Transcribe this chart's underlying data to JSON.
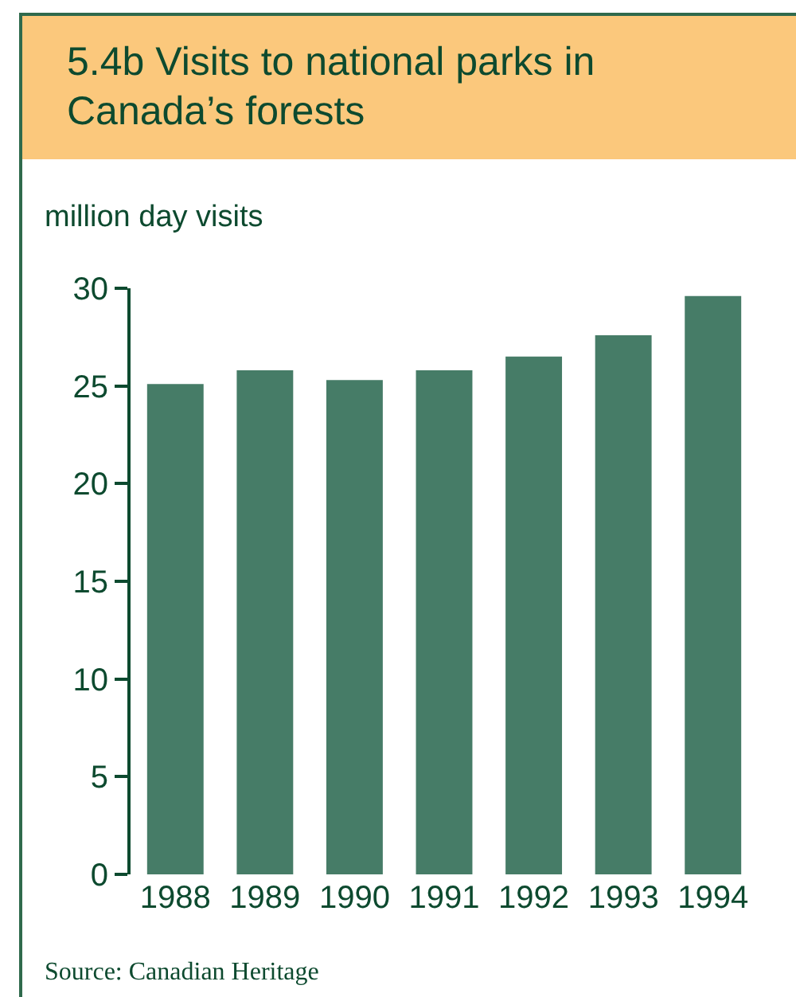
{
  "chart_data": {
    "type": "bar",
    "title": "5.4b Visits to national parks in Canada’s forests",
    "ylabel": "million day visits",
    "categories": [
      "1988",
      "1989",
      "1990",
      "1991",
      "1992",
      "1993",
      "1994"
    ],
    "values": [
      25.1,
      25.8,
      25.3,
      25.8,
      26.5,
      27.6,
      29.6
    ],
    "color": "#467c67",
    "ylim": [
      0,
      30
    ],
    "yticks": [
      0,
      5,
      10,
      15,
      20,
      25,
      30
    ],
    "grid": false,
    "annotations": [
      "Source:  Canadian Heritage"
    ]
  }
}
